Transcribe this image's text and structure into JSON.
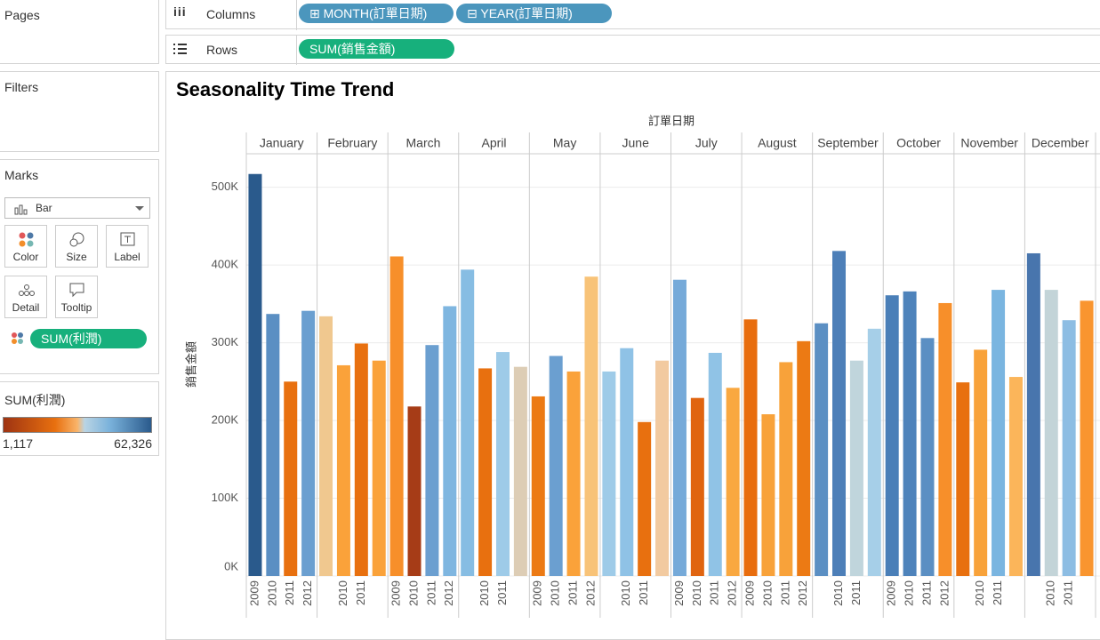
{
  "shelves": {
    "pages": "Pages",
    "columns": "Columns",
    "column_pills": [
      "MONTH(訂單日期)",
      "YEAR(訂單日期)"
    ],
    "rows": "Rows",
    "row_pills": [
      "SUM(銷售金額)"
    ]
  },
  "filters": "Filters",
  "marks": {
    "title": "Marks",
    "type": "Bar",
    "buttons": [
      "Color",
      "Size",
      "Label",
      "Detail",
      "Tooltip"
    ],
    "pill": "SUM(利潤)"
  },
  "legend": {
    "title": "SUM(利潤)",
    "min": {
      "value": 1117,
      "label": "1,117"
    },
    "max": {
      "value": 62326,
      "label": "62,326"
    }
  },
  "chart_data": {
    "type": "bar",
    "title": "Seasonality Time Trend",
    "x_title": "訂單日期",
    "y_title": "銷售金額",
    "months": [
      "January",
      "February",
      "March",
      "April",
      "May",
      "June",
      "July",
      "August",
      "September",
      "October",
      "November",
      "December"
    ],
    "categories": [
      "2009",
      "2010",
      "2011",
      "2012",
      null,
      "2010",
      "2011",
      null,
      "2009",
      "2010",
      "2011",
      "2012",
      null,
      "2010",
      "2011",
      null,
      "2009",
      "2010",
      "2011",
      "2012",
      null,
      "2010",
      "2011",
      null,
      "2009",
      "2010",
      "2011",
      "2012",
      "2009",
      "2010",
      "2011",
      "2012",
      null,
      "2010",
      "2011",
      null,
      "2009",
      "2010",
      "2011",
      "2012",
      null,
      "2010",
      "2011",
      null,
      null,
      "2010",
      "2011",
      null
    ],
    "values": [
      517000,
      337000,
      250000,
      341000,
      334000,
      271000,
      299000,
      277000,
      411000,
      218000,
      297000,
      347000,
      394000,
      267000,
      288000,
      269000,
      231000,
      283000,
      263000,
      385000,
      263000,
      293000,
      198000,
      277000,
      381000,
      229000,
      287000,
      242000,
      330000,
      208000,
      275000,
      302000,
      325000,
      418000,
      277000,
      318000,
      361000,
      366000,
      306000,
      351000,
      249000,
      291000,
      368000,
      256000,
      415000,
      368000,
      329000,
      354000
    ],
    "colors": [
      "#2a5a8c",
      "#5b8fc3",
      "#e8700f",
      "#6b9fd0",
      "#f0c88f",
      "#faa23a",
      "#e8700f",
      "#faa23a",
      "#f78f2a",
      "#a63c17",
      "#6b9fd0",
      "#7fb6e0",
      "#87bde3",
      "#e8700f",
      "#9ecbe8",
      "#ddcdb5",
      "#ec7a14",
      "#6b9fd0",
      "#faa23a",
      "#f8c378",
      "#9ecbe8",
      "#8fc2e6",
      "#e8700f",
      "#f2caa0",
      "#76aad9",
      "#e06410",
      "#90c3e6",
      "#f9a840",
      "#e86d0e",
      "#f8a23a",
      "#f8a23a",
      "#ec7a14",
      "#5b8fc3",
      "#4d7fb8",
      "#c0d5dc",
      "#a6cfe8",
      "#4a7fb8",
      "#4e83bb",
      "#5b8fc3",
      "#f78f2a",
      "#e8700f",
      "#f8a23a",
      "#7ab5e0",
      "#fbb55a",
      "#4875ad",
      "#c3d4d8",
      "#8dbde3",
      "#f9952f"
    ],
    "ylim": [
      0,
      543000
    ],
    "yticks": [
      {
        "value": 0,
        "label": "0K"
      },
      {
        "value": 100000,
        "label": "100K"
      },
      {
        "value": 200000,
        "label": "200K"
      },
      {
        "value": 300000,
        "label": "300K"
      },
      {
        "value": 400000,
        "label": "400K"
      },
      {
        "value": 500000,
        "label": "500K"
      }
    ],
    "grid": true
  }
}
